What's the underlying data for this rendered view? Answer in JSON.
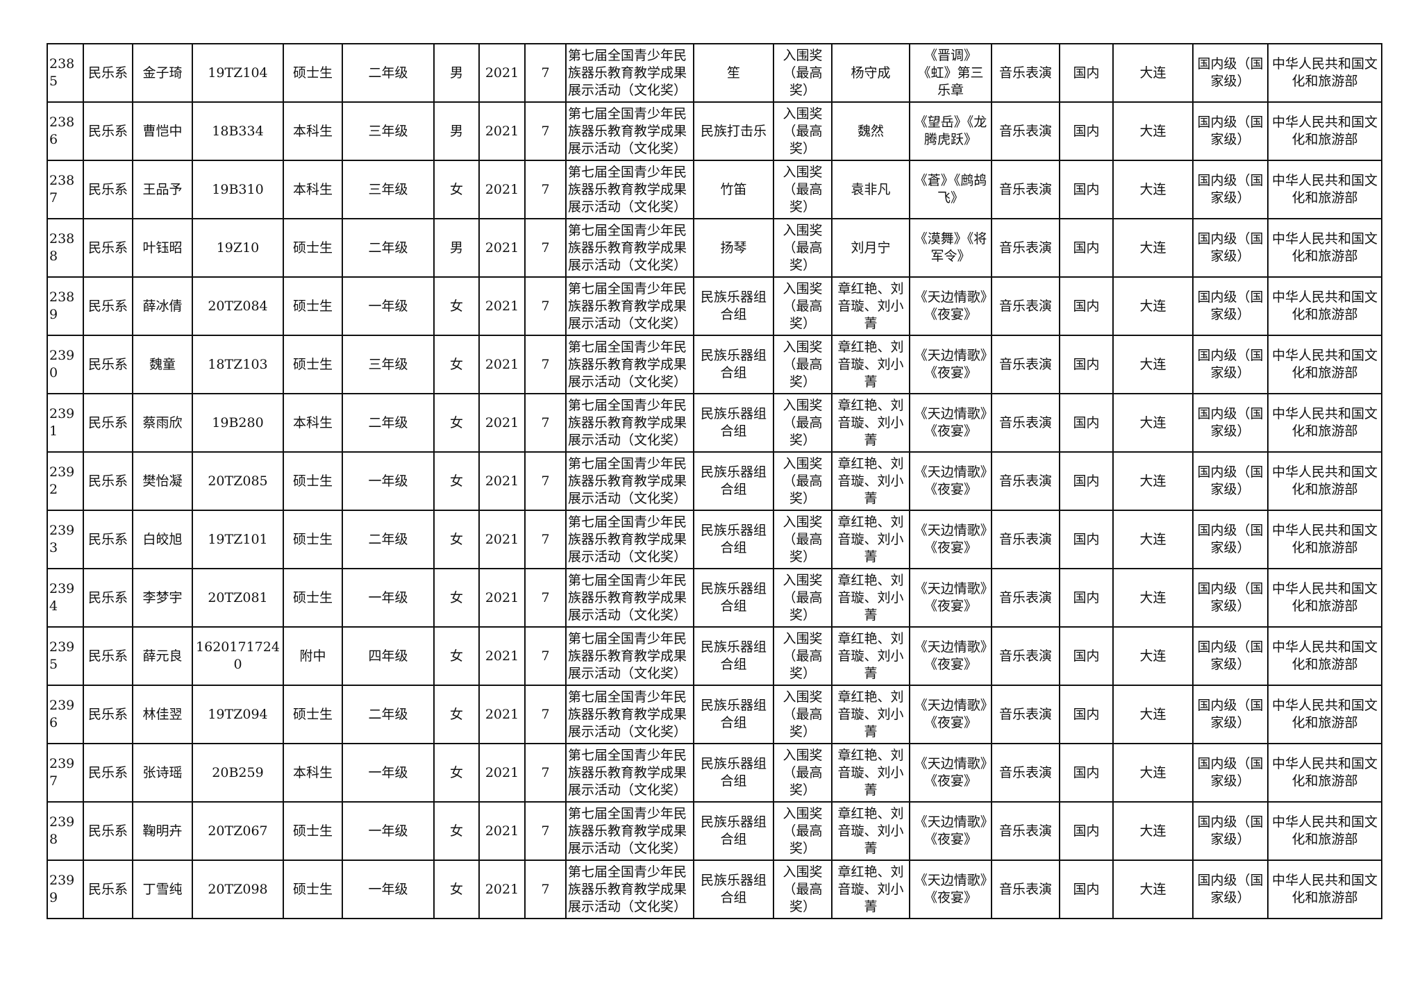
{
  "columns_count": 19,
  "rows": [
    [
      "2385",
      "民乐系",
      "金子琦",
      "19TZ104",
      "硕士生",
      "二年级",
      "男",
      "2021",
      "7",
      "第七届全国青少年民族器乐教育教学成果展示活动（文化奖）",
      "笙",
      "入围奖（最高奖）",
      "杨守成",
      "《晋调》《虹》第三乐章",
      "音乐表演",
      "国内",
      "大连",
      "国内级（国家级）",
      "中华人民共和国文化和旅游部"
    ],
    [
      "2386",
      "民乐系",
      "曹恺中",
      "18B334",
      "本科生",
      "三年级",
      "男",
      "2021",
      "7",
      "第七届全国青少年民族器乐教育教学成果展示活动（文化奖）",
      "民族打击乐",
      "入围奖（最高奖）",
      "魏然",
      "《望岳》《龙腾虎跃》",
      "音乐表演",
      "国内",
      "大连",
      "国内级（国家级）",
      "中华人民共和国文化和旅游部"
    ],
    [
      "2387",
      "民乐系",
      "王品予",
      "19B310",
      "本科生",
      "三年级",
      "女",
      "2021",
      "7",
      "第七届全国青少年民族器乐教育教学成果展示活动（文化奖）",
      "竹笛",
      "入围奖（最高奖）",
      "袁非凡",
      "《蒼》《鹧鸪飞》",
      "音乐表演",
      "国内",
      "大连",
      "国内级（国家级）",
      "中华人民共和国文化和旅游部"
    ],
    [
      "2388",
      "民乐系",
      "叶钰昭",
      "19Z10",
      "硕士生",
      "二年级",
      "男",
      "2021",
      "7",
      "第七届全国青少年民族器乐教育教学成果展示活动（文化奖）",
      "扬琴",
      "入围奖（最高奖）",
      "刘月宁",
      "《漠舞》《将军令》",
      "音乐表演",
      "国内",
      "大连",
      "国内级（国家级）",
      "中华人民共和国文化和旅游部"
    ],
    [
      "2389",
      "民乐系",
      "薛冰倩",
      "20TZ084",
      "硕士生",
      "一年级",
      "女",
      "2021",
      "7",
      "第七届全国青少年民族器乐教育教学成果展示活动（文化奖）",
      "民族乐器组合组",
      "入围奖（最高奖）",
      "章红艳、刘音璇、刘小菁",
      "《天边情歌》《夜宴》",
      "音乐表演",
      "国内",
      "大连",
      "国内级（国家级）",
      "中华人民共和国文化和旅游部"
    ],
    [
      "2390",
      "民乐系",
      "魏童",
      "18TZ103",
      "硕士生",
      "三年级",
      "女",
      "2021",
      "7",
      "第七届全国青少年民族器乐教育教学成果展示活动（文化奖）",
      "民族乐器组合组",
      "入围奖（最高奖）",
      "章红艳、刘音璇、刘小菁",
      "《天边情歌》《夜宴》",
      "音乐表演",
      "国内",
      "大连",
      "国内级（国家级）",
      "中华人民共和国文化和旅游部"
    ],
    [
      "2391",
      "民乐系",
      "蔡雨欣",
      "19B280",
      "本科生",
      "二年级",
      "女",
      "2021",
      "7",
      "第七届全国青少年民族器乐教育教学成果展示活动（文化奖）",
      "民族乐器组合组",
      "入围奖（最高奖）",
      "章红艳、刘音璇、刘小菁",
      "《天边情歌》《夜宴》",
      "音乐表演",
      "国内",
      "大连",
      "国内级（国家级）",
      "中华人民共和国文化和旅游部"
    ],
    [
      "2392",
      "民乐系",
      "樊怡凝",
      "20TZ085",
      "硕士生",
      "一年级",
      "女",
      "2021",
      "7",
      "第七届全国青少年民族器乐教育教学成果展示活动（文化奖）",
      "民族乐器组合组",
      "入围奖（最高奖）",
      "章红艳、刘音璇、刘小菁",
      "《天边情歌》《夜宴》",
      "音乐表演",
      "国内",
      "大连",
      "国内级（国家级）",
      "中华人民共和国文化和旅游部"
    ],
    [
      "2393",
      "民乐系",
      "白皎旭",
      "19TZ101",
      "硕士生",
      "二年级",
      "女",
      "2021",
      "7",
      "第七届全国青少年民族器乐教育教学成果展示活动（文化奖）",
      "民族乐器组合组",
      "入围奖（最高奖）",
      "章红艳、刘音璇、刘小菁",
      "《天边情歌》《夜宴》",
      "音乐表演",
      "国内",
      "大连",
      "国内级（国家级）",
      "中华人民共和国文化和旅游部"
    ],
    [
      "2394",
      "民乐系",
      "李梦宇",
      "20TZ081",
      "硕士生",
      "一年级",
      "女",
      "2021",
      "7",
      "第七届全国青少年民族器乐教育教学成果展示活动（文化奖）",
      "民族乐器组合组",
      "入围奖（最高奖）",
      "章红艳、刘音璇、刘小菁",
      "《天边情歌》《夜宴》",
      "音乐表演",
      "国内",
      "大连",
      "国内级（国家级）",
      "中华人民共和国文化和旅游部"
    ],
    [
      "2395",
      "民乐系",
      "薛元良",
      "16201717240",
      "附中",
      "四年级",
      "女",
      "2021",
      "7",
      "第七届全国青少年民族器乐教育教学成果展示活动（文化奖）",
      "民族乐器组合组",
      "入围奖（最高奖）",
      "章红艳、刘音璇、刘小菁",
      "《天边情歌》《夜宴》",
      "音乐表演",
      "国内",
      "大连",
      "国内级（国家级）",
      "中华人民共和国文化和旅游部"
    ],
    [
      "2396",
      "民乐系",
      "林佳翌",
      "19TZ094",
      "硕士生",
      "二年级",
      "女",
      "2021",
      "7",
      "第七届全国青少年民族器乐教育教学成果展示活动（文化奖）",
      "民族乐器组合组",
      "入围奖（最高奖）",
      "章红艳、刘音璇、刘小菁",
      "《天边情歌》《夜宴》",
      "音乐表演",
      "国内",
      "大连",
      "国内级（国家级）",
      "中华人民共和国文化和旅游部"
    ],
    [
      "2397",
      "民乐系",
      "张诗瑶",
      "20B259",
      "本科生",
      "一年级",
      "女",
      "2021",
      "7",
      "第七届全国青少年民族器乐教育教学成果展示活动（文化奖）",
      "民族乐器组合组",
      "入围奖（最高奖）",
      "章红艳、刘音璇、刘小菁",
      "《天边情歌》《夜宴》",
      "音乐表演",
      "国内",
      "大连",
      "国内级（国家级）",
      "中华人民共和国文化和旅游部"
    ],
    [
      "2398",
      "民乐系",
      "鞠明卉",
      "20TZ067",
      "硕士生",
      "一年级",
      "女",
      "2021",
      "7",
      "第七届全国青少年民族器乐教育教学成果展示活动（文化奖）",
      "民族乐器组合组",
      "入围奖（最高奖）",
      "章红艳、刘音璇、刘小菁",
      "《天边情歌》《夜宴》",
      "音乐表演",
      "国内",
      "大连",
      "国内级（国家级）",
      "中华人民共和国文化和旅游部"
    ],
    [
      "2399",
      "民乐系",
      "丁雪纯",
      "20TZ098",
      "硕士生",
      "一年级",
      "女",
      "2021",
      "7",
      "第七届全国青少年民族器乐教育教学成果展示活动（文化奖）",
      "民族乐器组合组",
      "入围奖（最高奖）",
      "章红艳、刘音璇、刘小菁",
      "《天边情歌》《夜宴》",
      "音乐表演",
      "国内",
      "大连",
      "国内级（国家级）",
      "中华人民共和国文化和旅游部"
    ]
  ]
}
